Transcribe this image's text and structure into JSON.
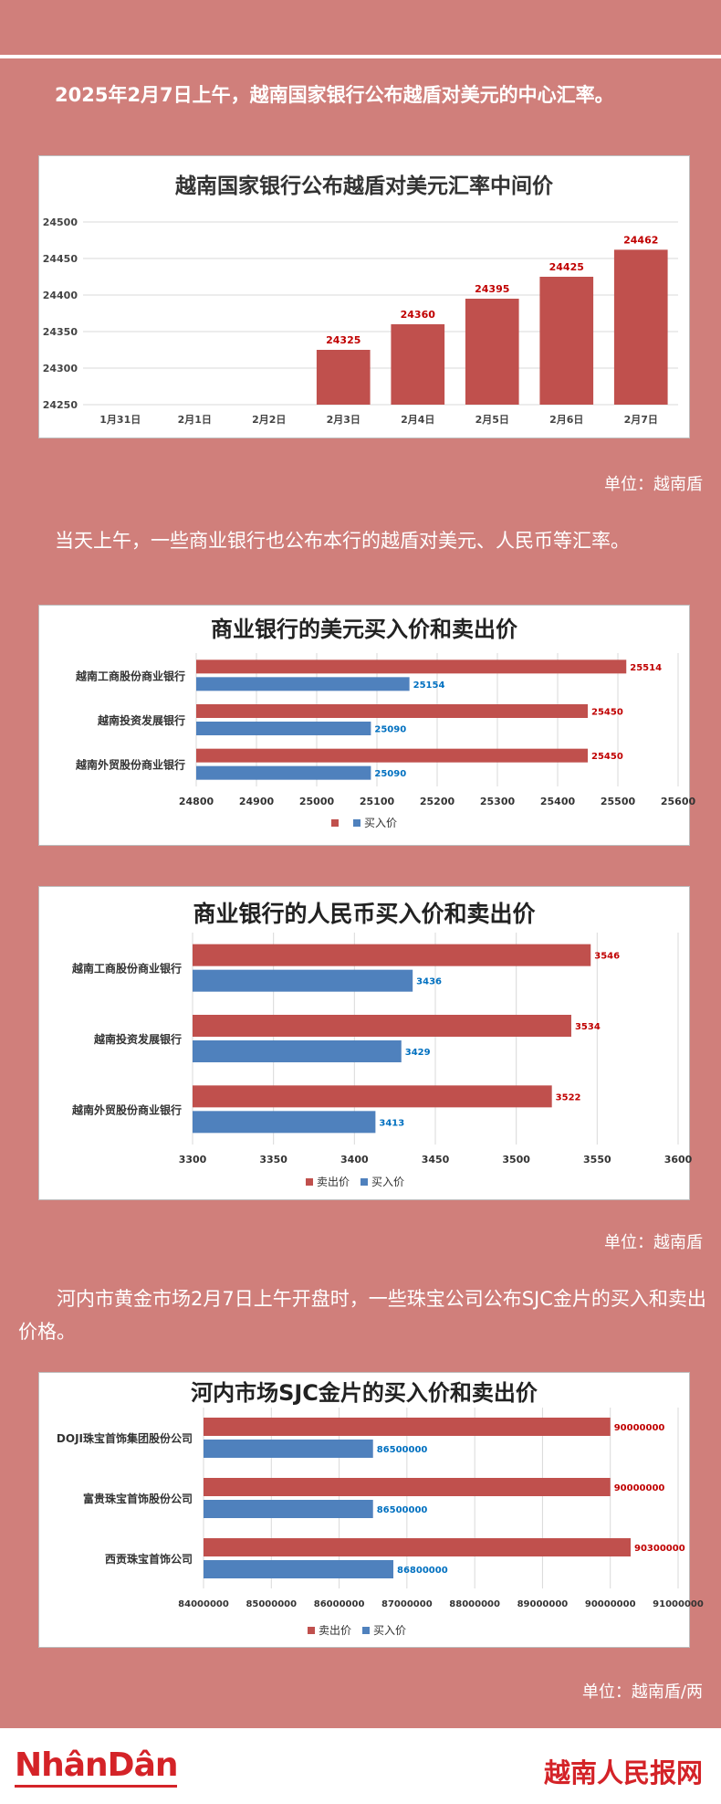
{
  "paragraphs": {
    "p1": "2025年2月7日上午，越南国家银行公布越盾对美元的中心汇率。",
    "p2": "当天上午，一些商业银行也公布本行的越盾对美元、人民币等汇率。",
    "p3": "河内市黄金市场2月7日上午开盘时，一些珠宝公司公布SJC金片的买入和卖出价格。"
  },
  "units": {
    "u1": "单位：越南盾",
    "u2": "单位：越南盾",
    "u3": "单位：越南盾/两"
  },
  "footer": {
    "logo_left": "NhânDân",
    "logo_right": "越南人民报网"
  },
  "colors": {
    "sell": "#c0504d",
    "buy": "#4f81bd",
    "background": "#d07f7b"
  },
  "chart_data": [
    {
      "type": "bar",
      "title": "越南国家银行公布越盾对美元汇率中间价",
      "categories": [
        "1月31日",
        "2月1日",
        "2月2日",
        "2月3日",
        "2月4日",
        "2月5日",
        "2月6日",
        "2月7日"
      ],
      "values": [
        null,
        null,
        null,
        24325,
        24360,
        24395,
        24425,
        24462
      ],
      "value_labels": [
        "",
        "",
        "",
        "24325",
        "24360",
        "24395",
        "24425",
        "24462"
      ],
      "ylim": [
        24250,
        24500
      ],
      "yticks": [
        "24250",
        "24300",
        "24350",
        "24400",
        "24450",
        "24500"
      ],
      "grid": true,
      "legend": "none"
    },
    {
      "type": "bar",
      "orientation": "horizontal",
      "title": "商业银行的美元买入价和卖出价",
      "categories": [
        "越南工商股份商业银行",
        "越南投资发展银行",
        "越南外贸股份商业银行"
      ],
      "series": [
        {
          "name": "",
          "values": [
            25514,
            25450,
            25450
          ],
          "labels": [
            "25514",
            "25450",
            "25450"
          ]
        },
        {
          "name": "买入价",
          "values": [
            25154,
            25090,
            25090
          ],
          "labels": [
            "25154",
            "25090",
            "25090"
          ]
        }
      ],
      "xlim": [
        24800,
        25600
      ],
      "xticks": [
        "24800",
        "24900",
        "25000",
        "25100",
        "25200",
        "25300",
        "25400",
        "25500",
        "25600"
      ],
      "grid": true,
      "legend": "bottom"
    },
    {
      "type": "bar",
      "orientation": "horizontal",
      "title": "商业银行的人民币买入价和卖出价",
      "categories": [
        "越南工商股份商业银行",
        "越南投资发展银行",
        "越南外贸股份商业银行"
      ],
      "series": [
        {
          "name": "卖出价",
          "values": [
            3546,
            3534,
            3522
          ],
          "labels": [
            "3546",
            "3534",
            "3522"
          ]
        },
        {
          "name": "买入价",
          "values": [
            3436,
            3429,
            3413
          ],
          "labels": [
            "3436",
            "3429",
            "3413"
          ]
        }
      ],
      "xlim": [
        3300,
        3600
      ],
      "xticks": [
        "3300",
        "3350",
        "3400",
        "3450",
        "3500",
        "3550",
        "3600"
      ],
      "grid": true,
      "legend": "bottom"
    },
    {
      "type": "bar",
      "orientation": "horizontal",
      "title": "河内市场SJC金片的买入价和卖出价",
      "categories": [
        "DOJI珠宝首饰集团股份公司",
        "富贵珠宝首饰股份公司",
        "西贡珠宝首饰公司"
      ],
      "series": [
        {
          "name": "卖出价",
          "values": [
            90000000,
            90000000,
            90300000
          ],
          "labels": [
            "90000000",
            "90000000",
            "90300000"
          ]
        },
        {
          "name": "买入价",
          "values": [
            86500000,
            86500000,
            86800000
          ],
          "labels": [
            "86500000",
            "86500000",
            "86800000"
          ]
        }
      ],
      "xlim": [
        84000000,
        91000000
      ],
      "xticks": [
        "84000000",
        "85000000",
        "86000000",
        "87000000",
        "88000000",
        "89000000",
        "90000000",
        "91000000"
      ],
      "grid": true,
      "legend": "bottom"
    }
  ]
}
